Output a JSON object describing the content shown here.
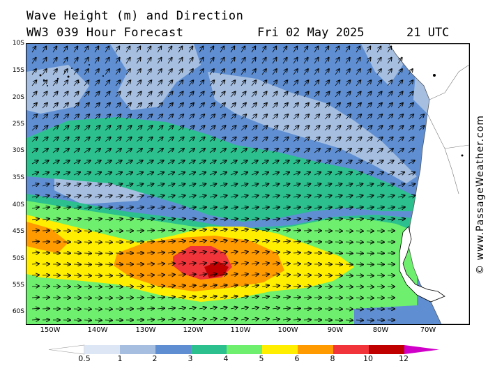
{
  "header": {
    "title": "Wave Height (m) and Direction",
    "model": "WW3 039 Hour Forecast",
    "date": "Fri 02 May 2025",
    "time": "21 UTC"
  },
  "axes": {
    "latitudes": [
      "10S",
      "15S",
      "20S",
      "25S",
      "30S",
      "35S",
      "40S",
      "45S",
      "50S",
      "55S",
      "60S"
    ],
    "longitudes": [
      "150W",
      "140W",
      "130W",
      "120W",
      "110W",
      "100W",
      "90W",
      "80W",
      "70W"
    ]
  },
  "copyright": "© www.PassageWeather.com",
  "legend": {
    "labels": [
      "0.5",
      "1",
      "2",
      "3",
      "4",
      "5",
      "6",
      "8",
      "10",
      "12"
    ],
    "colors": [
      "#ffffff",
      "#dce6f4",
      "#a6bfe1",
      "#5f8fd2",
      "#2cc08e",
      "#6ef06e",
      "#ffee00",
      "#ff9a00",
      "#f0343a",
      "#c00000",
      "#d000c8"
    ]
  },
  "map_colors": {
    "land": "#ffffff",
    "land_border": "#555555",
    "arrow": "#000000"
  }
}
